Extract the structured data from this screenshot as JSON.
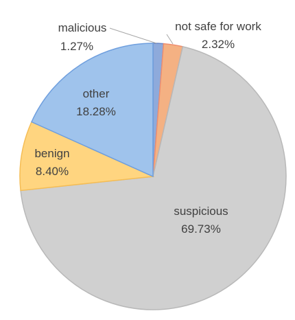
{
  "chart_data": {
    "type": "pie",
    "title": "",
    "start_angle_deg": 0,
    "direction": "clockwise",
    "legend": "none",
    "slices": [
      {
        "label": "malicious",
        "value_label": "1.27%",
        "value": 1.27,
        "color": "#8eaadb"
      },
      {
        "label": "not safe for work",
        "value_label": "2.32%",
        "value": 2.32,
        "color": "#f4b183"
      },
      {
        "label": "suspicious",
        "value_label": "69.73%",
        "value": 69.73,
        "color": "#d0d0d0"
      },
      {
        "label": "benign",
        "value_label": "8.40%",
        "value": 8.4,
        "color": "#ffd580"
      },
      {
        "label": "other",
        "value_label": "18.28%",
        "value": 18.28,
        "color": "#9fc3ec"
      }
    ],
    "colors": {
      "stroke_malicious": "#6a88c8",
      "stroke_nsfw": "#ee8e70",
      "stroke_suspicious": "#b8b8b8",
      "stroke_benign": "#f5bd55",
      "stroke_other": "#6f9fde",
      "label_text": "#404040",
      "leader_line": "#a6a6a6"
    }
  }
}
